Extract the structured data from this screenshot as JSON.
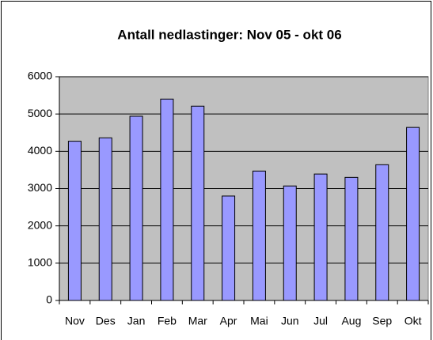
{
  "chart_data": {
    "type": "bar",
    "title": "Antall nedlastinger: Nov 05 - okt 06",
    "categories": [
      "Nov",
      "Des",
      "Jan",
      "Feb",
      "Mar",
      "Apr",
      "Mai",
      "Jun",
      "Jul",
      "Aug",
      "Sep",
      "Okt"
    ],
    "values": [
      4270,
      4360,
      4940,
      5400,
      5210,
      2800,
      3470,
      3070,
      3390,
      3300,
      3640,
      4640
    ],
    "color": "#9999ff",
    "ylim": [
      0,
      6000
    ],
    "yticks": [
      0,
      1000,
      2000,
      3000,
      4000,
      5000,
      6000
    ],
    "grid": true
  }
}
